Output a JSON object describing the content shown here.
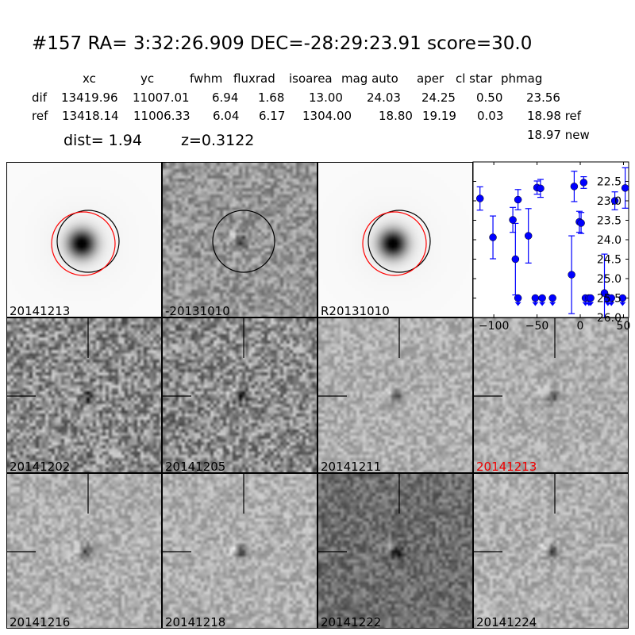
{
  "header": {
    "title": "#157   RA= 3:32:26.909 DEC=-28:29:23.91       score=30.0",
    "columns": [
      "xc",
      "yc",
      "fwhm",
      "fluxrad",
      "isoarea",
      "mag auto",
      "aper",
      "cl star",
      "phmag"
    ],
    "rows": [
      {
        "label": "dif",
        "values": [
          "13419.96",
          "11007.01",
          "6.94",
          "1.68",
          "13.00",
          "24.03",
          "24.25",
          "0.50",
          "23.56"
        ]
      },
      {
        "label": "ref",
        "values": [
          "13418.14",
          "11006.33",
          "6.04",
          "6.17",
          "1304.00",
          "18.80",
          "19.19",
          "0.03",
          "18.98 ref"
        ]
      }
    ],
    "new_phmag": "18.97 new",
    "dist": "dist=  1.94",
    "z": "z=0.3122"
  },
  "stamps": [
    {
      "label": "20141213",
      "kind": "galaxy",
      "circles": [
        "#000000",
        "#ff0000"
      ]
    },
    {
      "label": "-20131010",
      "kind": "diff",
      "circles": [
        "#000000"
      ]
    },
    {
      "label": "R20131010",
      "kind": "galaxy",
      "circles": [
        "#000000",
        "#ff0000"
      ]
    },
    {
      "label": "20141202",
      "kind": "noise"
    },
    {
      "label": "20141205",
      "kind": "noise"
    },
    {
      "label": "20141211",
      "kind": "smooth"
    },
    {
      "label": "20141213",
      "kind": "smooth",
      "highlight": "#ff0000"
    },
    {
      "label": "20141216",
      "kind": "smooth"
    },
    {
      "label": "20141218",
      "kind": "smooth"
    },
    {
      "label": "20141222",
      "kind": "dark"
    },
    {
      "label": "20141224",
      "kind": "smooth"
    }
  ],
  "chart_data": {
    "type": "scatter",
    "xlim": [
      -124,
      56
    ],
    "ylim": [
      26.0,
      22.0
    ],
    "y_inverted": true,
    "xticks": [
      -100,
      -50,
      0,
      50
    ],
    "yticks": [
      22.5,
      23.0,
      23.5,
      24.0,
      24.5,
      25.0,
      25.5,
      26.0
    ],
    "xtick_labels": [
      "−100",
      "−50",
      "0",
      "50"
    ],
    "ytick_labels": [
      "22.5",
      "23.0",
      "23.5",
      "24.0",
      "24.5",
      "25.0",
      "25.5",
      "26.0"
    ],
    "color": "#0000ff",
    "detections": [
      {
        "x": -116,
        "y": 22.94,
        "err": 0.3
      },
      {
        "x": -101,
        "y": 23.94,
        "err": 0.55
      },
      {
        "x": -78,
        "y": 23.49,
        "err": 0.32
      },
      {
        "x": -75,
        "y": 24.5,
        "err": 0.92
      },
      {
        "x": -72,
        "y": 22.97,
        "err": 0.26
      },
      {
        "x": -60,
        "y": 23.9,
        "err": 0.7
      },
      {
        "x": -50,
        "y": 22.66,
        "err": 0.17
      },
      {
        "x": -46,
        "y": 22.68,
        "err": 0.23
      },
      {
        "x": -10,
        "y": 24.9,
        "err": 1.0
      },
      {
        "x": -7,
        "y": 22.63,
        "err": 0.39
      },
      {
        "x": -1,
        "y": 23.54,
        "err": 0.27
      },
      {
        "x": 1,
        "y": 23.57,
        "err": 0.27
      },
      {
        "x": 4,
        "y": 22.53,
        "err": 0.15
      },
      {
        "x": 28,
        "y": 25.37,
        "err": 1.0
      },
      {
        "x": 40,
        "y": 23.0,
        "err": 0.23
      },
      {
        "x": 52,
        "y": 22.67,
        "err": 0.52
      }
    ],
    "upper_limits": [
      {
        "x": -72,
        "y": 25.5
      },
      {
        "x": -52,
        "y": 25.5
      },
      {
        "x": -44,
        "y": 25.5
      },
      {
        "x": -32,
        "y": 25.5
      },
      {
        "x": 6,
        "y": 25.5
      },
      {
        "x": 10,
        "y": 25.5
      },
      {
        "x": 12,
        "y": 25.5
      },
      {
        "x": 32,
        "y": 25.5
      },
      {
        "x": 36,
        "y": 25.5
      },
      {
        "x": 49,
        "y": 25.5
      }
    ]
  }
}
